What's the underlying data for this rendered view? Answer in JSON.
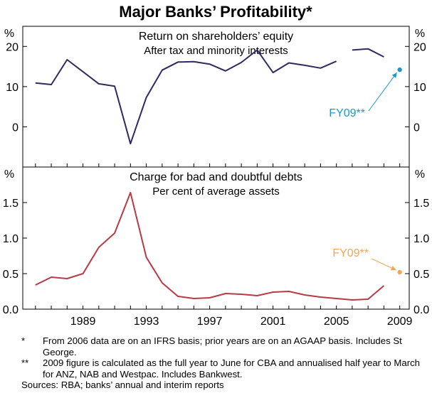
{
  "title": "Major Banks’ Profitability*",
  "chart_data": [
    {
      "type": "line",
      "title": "Return on shareholders’ equity",
      "subtitle": "After tax and minority interests",
      "ylabel": "%",
      "ylim": [
        -10,
        25
      ],
      "y_ticks": [
        "20",
        "10",
        "0"
      ],
      "x_ticks": [
        "1989",
        "1993",
        "1997",
        "2001",
        "2005",
        "2009"
      ],
      "xlim": [
        1985.2,
        2009.6
      ],
      "grid": false,
      "series": [
        {
          "color": "#2e2a62",
          "points": [
            [
              1986,
              10.9
            ],
            [
              1987,
              10.5
            ],
            [
              1988,
              16.7
            ],
            [
              1989,
              13.7
            ],
            [
              1990,
              10.7
            ],
            [
              1991,
              10.1
            ],
            [
              1992,
              -4.2
            ],
            [
              1993,
              7.3
            ],
            [
              1994,
              14.1
            ],
            [
              1995,
              16.1
            ],
            [
              1996,
              16.2
            ],
            [
              1997,
              15.6
            ],
            [
              1998,
              13.9
            ],
            [
              1999,
              16.0
            ],
            [
              2000,
              19.1
            ],
            [
              2001,
              13.5
            ],
            [
              2002,
              15.9
            ],
            [
              2003,
              15.3
            ],
            [
              2004,
              14.6
            ],
            [
              2005,
              16.3
            ]
          ]
        },
        {
          "color": "#2e2a62",
          "points": [
            [
              2006,
              19.1
            ],
            [
              2007,
              19.4
            ],
            [
              2008,
              17.4
            ]
          ]
        }
      ],
      "annotation": {
        "label": "FY09**",
        "x": 2009,
        "y": 14.2,
        "color": "#1a9ac9"
      }
    },
    {
      "type": "line",
      "title": "Charge for bad and doubtful debts",
      "subtitle": "Per cent of average assets",
      "ylabel": "%",
      "ylim": [
        0,
        2
      ],
      "y_ticks": [
        "1.5",
        "1.0",
        "0.5",
        "0.0"
      ],
      "x_ticks": [
        "1989",
        "1993",
        "1997",
        "2001",
        "2005",
        "2009"
      ],
      "xlim": [
        1985.2,
        2009.6
      ],
      "grid": false,
      "series": [
        {
          "color": "#b83a44",
          "points": [
            [
              1986,
              0.34
            ],
            [
              1987,
              0.45
            ],
            [
              1988,
              0.43
            ],
            [
              1989,
              0.5
            ],
            [
              1990,
              0.87
            ],
            [
              1991,
              1.07
            ],
            [
              1992,
              1.64
            ],
            [
              1993,
              0.73
            ],
            [
              1994,
              0.37
            ],
            [
              1995,
              0.18
            ],
            [
              1996,
              0.15
            ],
            [
              1997,
              0.16
            ],
            [
              1998,
              0.22
            ],
            [
              1999,
              0.21
            ],
            [
              2000,
              0.19
            ],
            [
              2001,
              0.24
            ],
            [
              2002,
              0.25
            ],
            [
              2003,
              0.2
            ],
            [
              2004,
              0.17
            ],
            [
              2005,
              0.15
            ],
            [
              2006,
              0.13
            ],
            [
              2007,
              0.14
            ],
            [
              2008,
              0.33
            ]
          ]
        }
      ],
      "annotation": {
        "label": "FY09**",
        "x": 2009,
        "y": 0.52,
        "color": "#f2a65a"
      }
    }
  ],
  "notes": [
    {
      "marker": "*",
      "text": "From 2006 data are on an IFRS basis; prior years are on an AGAAP basis. Includes St George."
    },
    {
      "marker": "**",
      "text": "2009 figure is calculated as the full year to June for CBA and annualised half year to March for ANZ, NAB and Westpac. Includes Bankwest."
    }
  ],
  "sources": "Sources: RBA; banks’ annual and interim reports"
}
